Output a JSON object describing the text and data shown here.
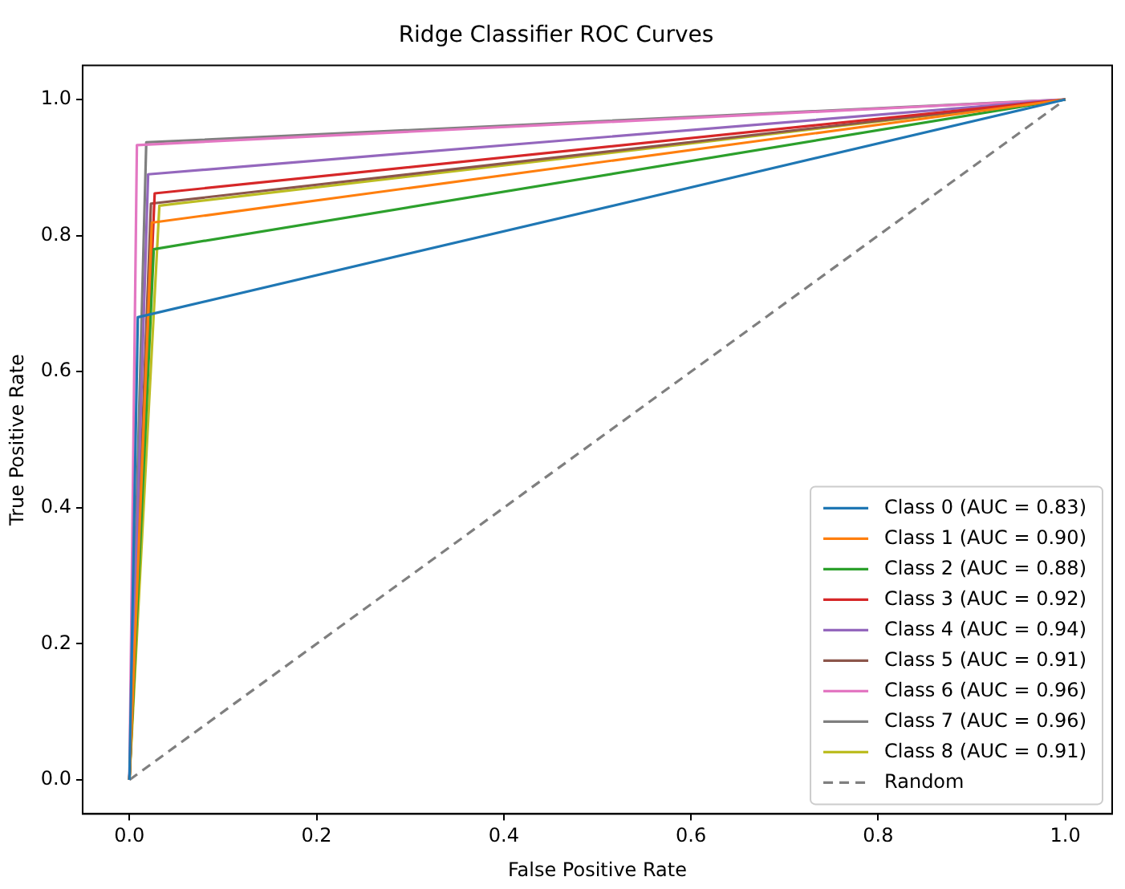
{
  "chart_data": {
    "type": "line",
    "title": "Ridge Classifier ROC Curves",
    "xlabel": "False Positive Rate",
    "ylabel": "True Positive Rate",
    "xlim": [
      -0.05,
      1.05
    ],
    "ylim": [
      -0.05,
      1.05
    ],
    "xticks": [
      {
        "value": 0,
        "label": "0.0"
      },
      0.2,
      0.4,
      0.6,
      0.8,
      {
        "value": 1,
        "label": "1.0"
      }
    ],
    "yticks": [
      {
        "value": 0,
        "label": "0.0"
      },
      0.2,
      0.4,
      0.6,
      0.8,
      {
        "value": 1,
        "label": "1.0"
      }
    ],
    "grid": false,
    "legend": "bottom right",
    "marker": "none",
    "series": [
      {
        "name": "Class 0 (AUC = 0.83)",
        "color": "#1f77b4",
        "x": [
          0,
          0.009,
          1
        ],
        "values": [
          0,
          0.68,
          1
        ]
      },
      {
        "name": "Class 1 (AUC = 0.90)",
        "color": "#ff7f0e",
        "x": [
          0,
          0.024,
          1
        ],
        "values": [
          0,
          0.819,
          1
        ]
      },
      {
        "name": "Class 2 (AUC = 0.88)",
        "color": "#2ca02c",
        "x": [
          0,
          0.026,
          1
        ],
        "values": [
          0,
          0.78,
          1
        ]
      },
      {
        "name": "Class 3 (AUC = 0.92)",
        "color": "#d62728",
        "x": [
          0,
          0.027,
          1
        ],
        "values": [
          0,
          0.862,
          1
        ]
      },
      {
        "name": "Class 4 (AUC = 0.94)",
        "color": "#9467bd",
        "x": [
          0,
          0.02,
          1
        ],
        "values": [
          0,
          0.89,
          1
        ]
      },
      {
        "name": "Class 5 (AUC = 0.91)",
        "color": "#8c564b",
        "x": [
          0,
          0.023,
          1
        ],
        "values": [
          0,
          0.847,
          1
        ]
      },
      {
        "name": "Class 6 (AUC = 0.96)",
        "color": "#e377c2",
        "x": [
          0,
          0.008,
          1
        ],
        "values": [
          0,
          0.933,
          1
        ]
      },
      {
        "name": "Class 7 (AUC = 0.96)",
        "color": "#7f7f7f",
        "x": [
          0,
          0.018,
          1
        ],
        "values": [
          0,
          0.937,
          1
        ]
      },
      {
        "name": "Class 8 (AUC = 0.91)",
        "color": "#bcbd22",
        "x": [
          0,
          0.032,
          1
        ],
        "values": [
          0,
          0.844,
          1
        ]
      },
      {
        "name": "Random",
        "color": "#7f7f7f",
        "x": [
          0,
          1
        ],
        "values": [
          0,
          1
        ],
        "line_style": "dashed"
      }
    ]
  }
}
